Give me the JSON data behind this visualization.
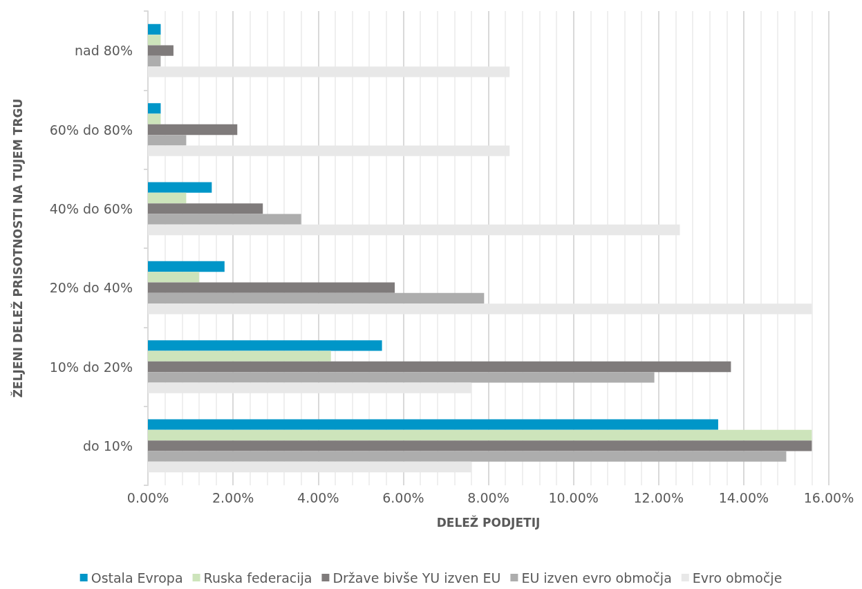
{
  "chart_data": {
    "type": "bar",
    "orientation": "horizontal",
    "xlabel": "DELEŽ PODJETIJ",
    "ylabel": "ŽELJENI DELEŽ PRISOTNOSTI NA TUJEM TRGU",
    "categories": [
      "nad 80%",
      "60% do 80%",
      "40% do 60%",
      "20% do 40%",
      "10% do 20%",
      "do 10%"
    ],
    "series": [
      {
        "name": "Ostala Evropa",
        "color": "#0096c8",
        "values": [
          0.3,
          0.3,
          1.5,
          1.8,
          5.5,
          13.4
        ]
      },
      {
        "name": "Ruska federacija",
        "color": "#cde4bb",
        "values": [
          0.3,
          0.3,
          0.9,
          1.2,
          4.3,
          15.6
        ]
      },
      {
        "name": "Države bivše YU izven EU",
        "color": "#7f7b7b",
        "values": [
          0.6,
          2.1,
          2.7,
          5.8,
          13.7,
          15.6
        ]
      },
      {
        "name": "EU izven evro območja",
        "color": "#adadad",
        "values": [
          0.3,
          0.9,
          3.6,
          7.9,
          11.9,
          15.0
        ]
      },
      {
        "name": "Evro območje",
        "color": "#e8e8e8",
        "values": [
          8.5,
          8.5,
          12.5,
          15.6,
          7.6,
          7.6
        ]
      }
    ],
    "xlim": [
      0,
      16
    ],
    "xticks": [
      {
        "value": 0,
        "label": "0.00%"
      },
      {
        "value": 2,
        "label": "2.00%"
      },
      {
        "value": 4,
        "label": "4.00%"
      },
      {
        "value": 6,
        "label": "6.00%"
      },
      {
        "value": 8,
        "label": "8.00%"
      },
      {
        "value": 10,
        "label": "10.00%"
      },
      {
        "value": 12,
        "label": "12.00%"
      },
      {
        "value": 14,
        "label": "14.00%"
      },
      {
        "value": 16,
        "label": "16.00%"
      }
    ],
    "grid": "x",
    "legend": "bottom"
  }
}
